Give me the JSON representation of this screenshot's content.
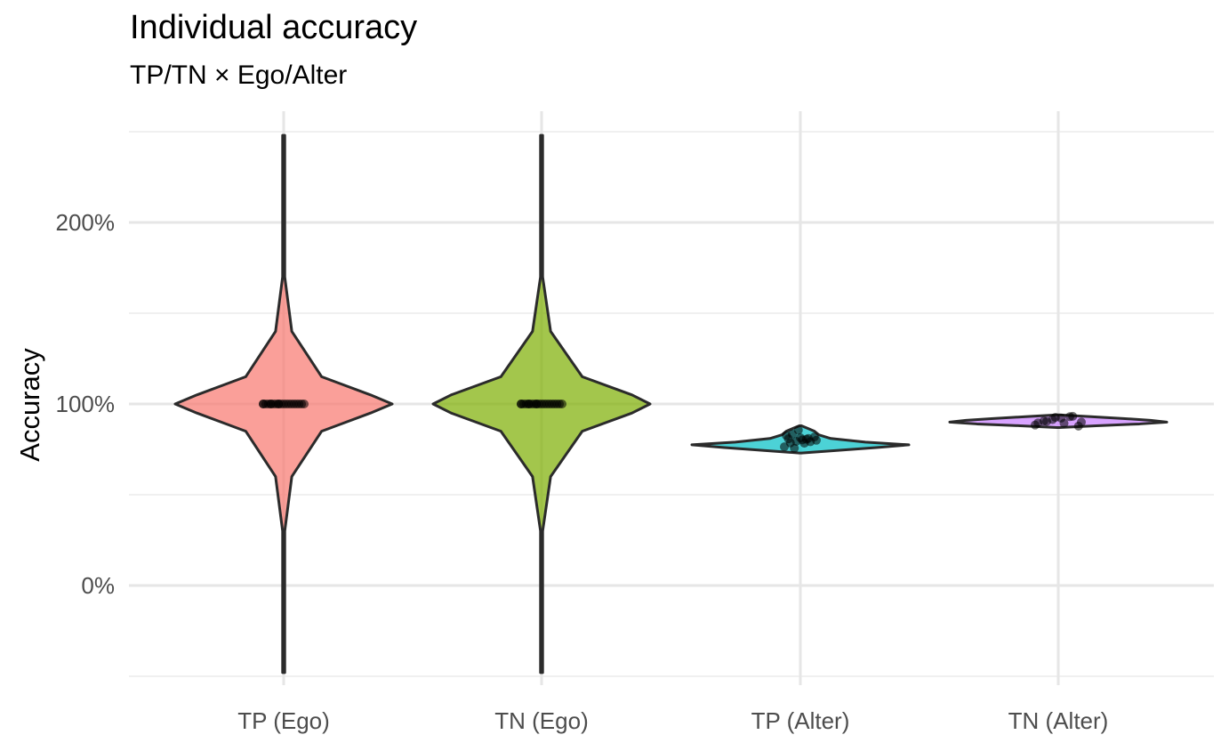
{
  "chart_data": {
    "type": "violin",
    "title": "Individual accuracy",
    "subtitle": "TP/TN × Ego/Alter",
    "xlabel": "",
    "ylabel": "Accuracy",
    "ylim": [
      -50,
      250
    ],
    "yticks": [
      0,
      100,
      200
    ],
    "ytick_labels": [
      "0%",
      "100%",
      "200%"
    ],
    "grid": true,
    "legend": "none",
    "categories": [
      "TP (Ego)",
      "TN (Ego)",
      "TP (Alter)",
      "TN (Alter)"
    ],
    "series": [
      {
        "category": "TP (Ego)",
        "color": "#F8766D",
        "range": [
          -48,
          248
        ],
        "density": [
          [
            -48,
            0.0
          ],
          [
            30,
            0.0
          ],
          [
            60,
            0.015
          ],
          [
            85,
            0.07
          ],
          [
            95,
            0.16
          ],
          [
            100,
            0.2
          ],
          [
            105,
            0.16
          ],
          [
            115,
            0.07
          ],
          [
            140,
            0.015
          ],
          [
            170,
            0.0
          ],
          [
            248,
            0.0
          ]
        ],
        "points": [
          100,
          100,
          100,
          100,
          100,
          100,
          100,
          100,
          100,
          100,
          100,
          100,
          100,
          100,
          100,
          100,
          100,
          100,
          100,
          100
        ]
      },
      {
        "category": "TN (Ego)",
        "color": "#7CAE00",
        "range": [
          -48,
          248
        ],
        "density": [
          [
            -48,
            0.0
          ],
          [
            30,
            0.0
          ],
          [
            60,
            0.02
          ],
          [
            85,
            0.09
          ],
          [
            95,
            0.2
          ],
          [
            100,
            0.24
          ],
          [
            105,
            0.2
          ],
          [
            115,
            0.09
          ],
          [
            140,
            0.02
          ],
          [
            170,
            0.0
          ],
          [
            248,
            0.0
          ]
        ],
        "points": [
          100,
          100,
          100,
          100,
          100,
          100,
          100,
          100,
          100,
          100,
          100,
          100,
          100,
          100,
          100,
          100,
          100,
          100,
          100,
          100
        ]
      },
      {
        "category": "TP (Alter)",
        "color": "#00BFC4",
        "range": [
          73,
          88
        ],
        "density": [
          [
            73,
            0.0
          ],
          [
            74,
            0.25
          ],
          [
            76,
            0.7
          ],
          [
            77.5,
            1.0
          ],
          [
            79,
            0.6
          ],
          [
            81,
            0.28
          ],
          [
            83,
            0.17
          ],
          [
            85,
            0.13
          ],
          [
            86.5,
            0.07
          ],
          [
            88,
            0.0
          ]
        ],
        "points": [
          77,
          78,
          79,
          80,
          81,
          82,
          83,
          84,
          85,
          78,
          79,
          80,
          81,
          76,
          82,
          80
        ]
      },
      {
        "category": "TN (Alter)",
        "color": "#C77CFF",
        "range": [
          87,
          94
        ],
        "density": [
          [
            87,
            0.0
          ],
          [
            88,
            0.35
          ],
          [
            89,
            0.75
          ],
          [
            90,
            1.0
          ],
          [
            91,
            0.85
          ],
          [
            92,
            0.6
          ],
          [
            93,
            0.3
          ],
          [
            94,
            0.0
          ]
        ],
        "points": [
          89,
          90,
          91,
          92,
          93,
          88,
          90,
          91,
          92,
          89,
          93,
          90
        ]
      }
    ]
  }
}
